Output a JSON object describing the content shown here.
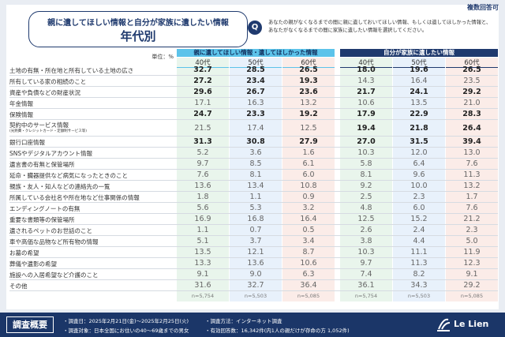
{
  "badge": "複数回答可",
  "title": {
    "line1": "親に遺してほしい情報と自分が家族に遺したい情報",
    "line2": "年代別"
  },
  "question": {
    "icon": "Q",
    "text": "あなたの親がなくなるまでの間に親に遺しておいてほしい情報、もしくは遺してほしかった情報と、あなたがなくなるまでの間に家族に遺したい情報を選択してください。"
  },
  "table": {
    "unit": "単位：%",
    "groups": [
      "親に遺してほしい情報・遺してほしかった情報",
      "自分が家族に遺したい情報"
    ],
    "columns": [
      "40代",
      "50代",
      "60代",
      "40代",
      "50代",
      "60代"
    ],
    "rows": [
      {
        "label": "土地の有無・所在地と所有している土地の広さ",
        "values": [
          "32.7",
          "28.5",
          "26.5",
          "18.0",
          "19.6",
          "26.5"
        ]
      },
      {
        "label": "所有している家の相続のこと",
        "values": [
          "27.2",
          "23.4",
          "19.3",
          "14.3",
          "16.4",
          "23.5"
        ]
      },
      {
        "label": "資産や負債などの財産状況",
        "values": [
          "29.6",
          "26.7",
          "23.6",
          "21.7",
          "24.1",
          "29.2"
        ]
      },
      {
        "label": "年金情報",
        "values": [
          "17.1",
          "16.3",
          "13.2",
          "10.6",
          "13.5",
          "21.0"
        ]
      },
      {
        "label": "保険情報",
        "values": [
          "24.7",
          "23.3",
          "19.2",
          "17.9",
          "22.9",
          "28.3"
        ]
      },
      {
        "label": "契約中のサービス情報",
        "sublabel": "(光熱費・クレジットカード・定額制サービス等)",
        "values": [
          "21.5",
          "17.4",
          "12.5",
          "19.4",
          "21.8",
          "26.4"
        ]
      },
      {
        "label": "銀行口座情報",
        "values": [
          "31.3",
          "30.8",
          "27.9",
          "27.0",
          "31.5",
          "39.4"
        ]
      },
      {
        "label": "SNSやデジタルアカウント情報",
        "values": [
          "5.2",
          "3.6",
          "1.6",
          "10.3",
          "12.0",
          "13.0"
        ]
      },
      {
        "label": "遺言書の有無と保管場所",
        "values": [
          "9.7",
          "8.5",
          "6.1",
          "5.8",
          "6.4",
          "7.6"
        ]
      },
      {
        "label": "延命・臓器提供など病気になったときのこと",
        "values": [
          "7.6",
          "8.1",
          "6.0",
          "8.1",
          "9.6",
          "11.3"
        ]
      },
      {
        "label": "親族・友人・知人などの連絡先の一覧",
        "values": [
          "13.6",
          "13.4",
          "10.8",
          "9.2",
          "10.0",
          "13.2"
        ]
      },
      {
        "label": "所属している会社名や所在地など仕事関係の情報",
        "values": [
          "1.8",
          "1.1",
          "0.9",
          "2.5",
          "2.3",
          "1.7"
        ]
      },
      {
        "label": "エンディングノートの有無",
        "values": [
          "5.6",
          "5.3",
          "3.2",
          "4.8",
          "6.0",
          "7.6"
        ]
      },
      {
        "label": "重要な書類等の保管場所",
        "values": [
          "16.9",
          "16.8",
          "16.4",
          "12.5",
          "15.2",
          "21.2"
        ]
      },
      {
        "label": "遺されるペットのお世話のこと",
        "values": [
          "1.1",
          "0.7",
          "0.5",
          "2.6",
          "2.4",
          "2.3"
        ]
      },
      {
        "label": "車や高価な品物など所有物の情報",
        "values": [
          "5.1",
          "3.7",
          "3.4",
          "3.8",
          "4.4",
          "5.0"
        ]
      },
      {
        "label": "お墓の希望",
        "values": [
          "13.5",
          "12.1",
          "8.7",
          "10.3",
          "11.1",
          "11.9"
        ]
      },
      {
        "label": "葬儀や遺影の希望",
        "values": [
          "13.3",
          "13.6",
          "10.6",
          "9.7",
          "11.3",
          "12.3"
        ]
      },
      {
        "label": "施設への入居希望など介護のこと",
        "values": [
          "9.1",
          "9.0",
          "6.3",
          "7.4",
          "8.2",
          "9.1"
        ]
      },
      {
        "label": "その他",
        "values": [
          "31.6",
          "32.7",
          "36.4",
          "36.1",
          "34.3",
          "29.2"
        ]
      }
    ],
    "n": [
      "n=5,754",
      "n=5,503",
      "n=5,085",
      "n=5,754",
      "n=5,503",
      "n=5,085"
    ]
  },
  "footer": {
    "heading": "調査概要",
    "items": [
      "・調査日：2025年2月21日(金)～2025年2月25日(火)",
      "・調査方法：インターネット調査",
      "・調査対象：日本全国にお住いの40～69歳までの男女",
      "・有効回答数：16,342件(内1人の親だけが存命の方 1,052件)"
    ],
    "logo": "Le Lien"
  }
}
